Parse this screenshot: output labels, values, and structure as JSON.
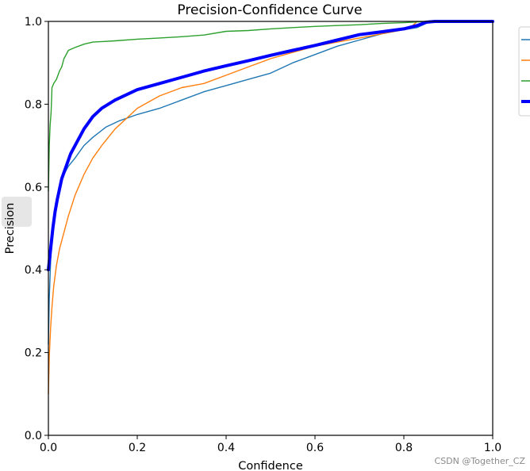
{
  "chart_data": {
    "type": "line",
    "title": "Precision-Confidence Curve",
    "xlabel": "Confidence",
    "ylabel": "Precision",
    "xlim": [
      0,
      1
    ],
    "ylim": [
      0,
      1
    ],
    "xticks": [
      "0.0",
      "0.2",
      "0.4",
      "0.6",
      "0.8",
      "1.0"
    ],
    "yticks": [
      "0.0",
      "0.2",
      "0.4",
      "0.6",
      "0.8",
      "1.0"
    ],
    "grid": false,
    "legend_position": "outside top-right",
    "series": [
      {
        "color": "#1f77b4",
        "width": "thin",
        "x": [
          0.0,
          0.002,
          0.005,
          0.008,
          0.012,
          0.018,
          0.025,
          0.035,
          0.045,
          0.06,
          0.08,
          0.1,
          0.13,
          0.16,
          0.2,
          0.25,
          0.3,
          0.35,
          0.4,
          0.45,
          0.5,
          0.55,
          0.6,
          0.65,
          0.7,
          0.75,
          0.8,
          0.83,
          0.85,
          0.86
        ],
        "y": [
          0.22,
          0.33,
          0.42,
          0.48,
          0.53,
          0.57,
          0.6,
          0.63,
          0.65,
          0.67,
          0.7,
          0.72,
          0.745,
          0.76,
          0.775,
          0.79,
          0.81,
          0.83,
          0.845,
          0.86,
          0.875,
          0.9,
          0.92,
          0.94,
          0.955,
          0.97,
          0.98,
          0.985,
          0.995,
          1.0
        ]
      },
      {
        "color": "#ff7f0e",
        "width": "thin",
        "x": [
          0.0,
          0.002,
          0.005,
          0.008,
          0.012,
          0.018,
          0.025,
          0.035,
          0.045,
          0.06,
          0.08,
          0.1,
          0.12,
          0.15,
          0.18,
          0.2,
          0.25,
          0.3,
          0.35,
          0.4,
          0.45,
          0.5,
          0.55,
          0.6,
          0.65,
          0.7,
          0.75,
          0.8,
          0.82,
          0.83
        ],
        "y": [
          0.1,
          0.19,
          0.26,
          0.31,
          0.36,
          0.41,
          0.45,
          0.49,
          0.53,
          0.58,
          0.63,
          0.67,
          0.7,
          0.74,
          0.77,
          0.79,
          0.82,
          0.84,
          0.85,
          0.87,
          0.89,
          0.91,
          0.925,
          0.94,
          0.95,
          0.96,
          0.97,
          0.98,
          0.99,
          1.0
        ]
      },
      {
        "color": "#2ca02c",
        "width": "thin",
        "x": [
          0.0,
          0.002,
          0.004,
          0.006,
          0.008,
          0.012,
          0.018,
          0.025,
          0.03,
          0.035,
          0.045,
          0.06,
          0.08,
          0.1,
          0.15,
          0.2,
          0.25,
          0.3,
          0.35,
          0.4,
          0.45,
          0.5,
          0.55,
          0.6,
          0.65,
          0.7,
          0.75,
          0.8,
          0.85
        ],
        "y": [
          0.59,
          0.7,
          0.75,
          0.78,
          0.84,
          0.85,
          0.86,
          0.88,
          0.89,
          0.91,
          0.93,
          0.937,
          0.945,
          0.95,
          0.953,
          0.957,
          0.96,
          0.963,
          0.967,
          0.976,
          0.978,
          0.982,
          0.985,
          0.988,
          0.99,
          0.992,
          0.995,
          0.997,
          1.0
        ]
      },
      {
        "color": "#0000ff",
        "width": "thick",
        "x": [
          0.0,
          0.005,
          0.01,
          0.015,
          0.02,
          0.03,
          0.04,
          0.05,
          0.06,
          0.08,
          0.1,
          0.12,
          0.15,
          0.2,
          0.25,
          0.3,
          0.35,
          0.4,
          0.45,
          0.5,
          0.55,
          0.6,
          0.65,
          0.7,
          0.75,
          0.8,
          0.83,
          0.85,
          0.87,
          1.0
        ],
        "y": [
          0.4,
          0.45,
          0.5,
          0.54,
          0.57,
          0.62,
          0.65,
          0.68,
          0.7,
          0.74,
          0.77,
          0.79,
          0.81,
          0.835,
          0.85,
          0.865,
          0.88,
          0.893,
          0.905,
          0.918,
          0.93,
          0.942,
          0.955,
          0.968,
          0.975,
          0.982,
          0.99,
          0.998,
          1.0,
          1.0
        ]
      }
    ]
  },
  "watermark": "CSDN @Together_CZ"
}
